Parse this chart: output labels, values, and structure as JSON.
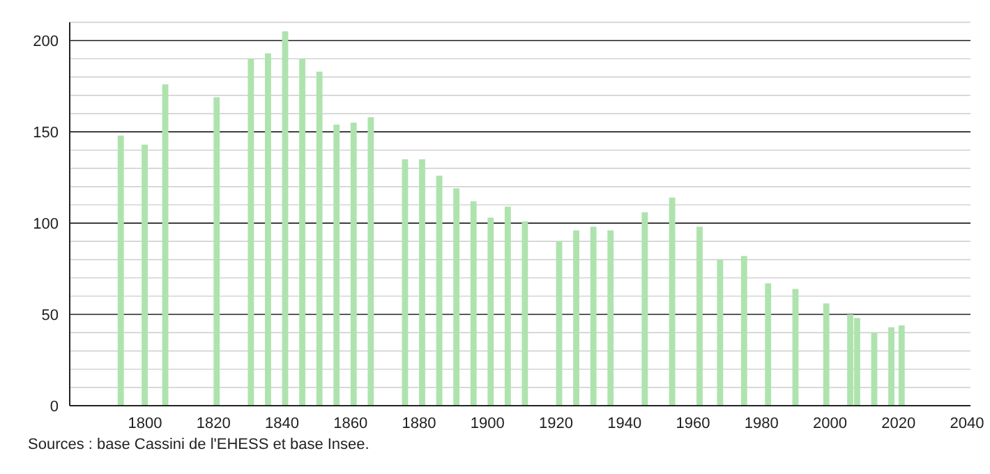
{
  "chart_data": {
    "type": "bar",
    "x": [
      1793,
      1800,
      1806,
      1821,
      1831,
      1836,
      1841,
      1846,
      1851,
      1856,
      1861,
      1866,
      1876,
      1881,
      1886,
      1891,
      1896,
      1901,
      1906,
      1911,
      1921,
      1926,
      1931,
      1936,
      1946,
      1954,
      1962,
      1968,
      1975,
      1982,
      1990,
      1999,
      2006,
      2008,
      2013,
      2018,
      2021
    ],
    "values": [
      148,
      143,
      176,
      169,
      190,
      193,
      205,
      190,
      183,
      154,
      155,
      158,
      135,
      135,
      126,
      119,
      112,
      103,
      109,
      101,
      90,
      96,
      98,
      96,
      106,
      114,
      98,
      80,
      82,
      67,
      64,
      56,
      50,
      48,
      40,
      43,
      44
    ],
    "color": "#aee3ae",
    "xlim": [
      1778,
      2041
    ],
    "xticks": [
      1800,
      1820,
      1840,
      1860,
      1880,
      1900,
      1920,
      1940,
      1960,
      1980,
      2000,
      2020,
      2040
    ],
    "ylim": [
      0,
      210
    ],
    "yticks": [
      0,
      {
        "value": 10,
        "label": null
      },
      {
        "value": 20,
        "label": null
      },
      {
        "value": 30,
        "label": null
      },
      {
        "value": 40,
        "label": null
      },
      50,
      {
        "value": 60,
        "label": null
      },
      {
        "value": 70,
        "label": null
      },
      {
        "value": 80,
        "label": null
      },
      {
        "value": 90,
        "label": null
      },
      100,
      {
        "value": 110,
        "label": null
      },
      {
        "value": 120,
        "label": null
      },
      {
        "value": 130,
        "label": null
      },
      {
        "value": 140,
        "label": null
      },
      150,
      {
        "value": 160,
        "label": null
      },
      {
        "value": 170,
        "label": null
      },
      {
        "value": 180,
        "label": null
      },
      {
        "value": 190,
        "label": null
      },
      200,
      {
        "value": 210,
        "label": null
      }
    ],
    "grid": "y",
    "annotations": [
      "Sources : base Cassini de l'EHESS et base Insee."
    ]
  }
}
